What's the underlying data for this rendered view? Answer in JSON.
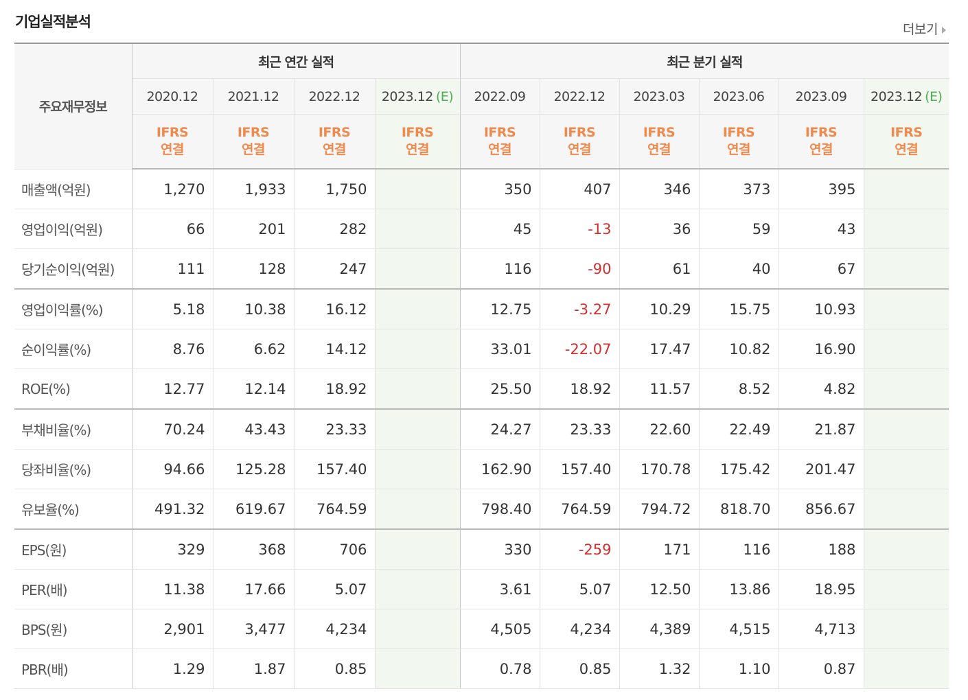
{
  "section": {
    "title": "기업실적분석",
    "more_label": "더보기"
  },
  "table": {
    "label_header": "주요재무정보",
    "annual_header": "최근 연간 실적",
    "quarter_header": "최근 분기 실적",
    "annual_years": [
      "2020.12",
      "2021.12",
      "2022.12",
      "2023.12"
    ],
    "quarter_years": [
      "2022.09",
      "2022.12",
      "2023.03",
      "2023.06",
      "2023.09",
      "2023.12"
    ],
    "estimate_mark": "(E)",
    "ifrs_line1": "IFRS",
    "ifrs_line2": "연결",
    "rows": [
      {
        "label": "매출액(억원)",
        "annual": [
          "1,270",
          "1,933",
          "1,750",
          ""
        ],
        "quarter": [
          "350",
          "407",
          "346",
          "373",
          "395",
          ""
        ]
      },
      {
        "label": "영업이익(억원)",
        "annual": [
          "66",
          "201",
          "282",
          ""
        ],
        "quarter": [
          "45",
          "-13",
          "36",
          "59",
          "43",
          ""
        ]
      },
      {
        "label": "당기순이익(억원)",
        "annual": [
          "111",
          "128",
          "247",
          ""
        ],
        "quarter": [
          "116",
          "-90",
          "61",
          "40",
          "67",
          ""
        ]
      },
      {
        "label": "영업이익률(%)",
        "annual": [
          "5.18",
          "10.38",
          "16.12",
          ""
        ],
        "quarter": [
          "12.75",
          "-3.27",
          "10.29",
          "15.75",
          "10.93",
          ""
        ]
      },
      {
        "label": "순이익률(%)",
        "annual": [
          "8.76",
          "6.62",
          "14.12",
          ""
        ],
        "quarter": [
          "33.01",
          "-22.07",
          "17.47",
          "10.82",
          "16.90",
          ""
        ]
      },
      {
        "label": "ROE(%)",
        "annual": [
          "12.77",
          "12.14",
          "18.92",
          ""
        ],
        "quarter": [
          "25.50",
          "18.92",
          "11.57",
          "8.52",
          "4.82",
          ""
        ]
      },
      {
        "label": "부채비율(%)",
        "annual": [
          "70.24",
          "43.43",
          "23.33",
          ""
        ],
        "quarter": [
          "24.27",
          "23.33",
          "22.60",
          "22.49",
          "21.87",
          ""
        ]
      },
      {
        "label": "당좌비율(%)",
        "annual": [
          "94.66",
          "125.28",
          "157.40",
          ""
        ],
        "quarter": [
          "162.90",
          "157.40",
          "170.78",
          "175.42",
          "201.47",
          ""
        ]
      },
      {
        "label": "유보율(%)",
        "annual": [
          "491.32",
          "619.67",
          "764.59",
          ""
        ],
        "quarter": [
          "798.40",
          "764.59",
          "794.72",
          "818.70",
          "856.67",
          ""
        ]
      },
      {
        "label": "EPS(원)",
        "annual": [
          "329",
          "368",
          "706",
          ""
        ],
        "quarter": [
          "330",
          "-259",
          "171",
          "116",
          "188",
          ""
        ]
      },
      {
        "label": "PER(배)",
        "annual": [
          "11.38",
          "17.66",
          "5.07",
          ""
        ],
        "quarter": [
          "3.61",
          "5.07",
          "12.50",
          "13.86",
          "18.95",
          ""
        ]
      },
      {
        "label": "BPS(원)",
        "annual": [
          "2,901",
          "3,477",
          "4,234",
          ""
        ],
        "quarter": [
          "4,505",
          "4,234",
          "4,389",
          "4,515",
          "4,713",
          ""
        ]
      },
      {
        "label": "PBR(배)",
        "annual": [
          "1.29",
          "1.87",
          "0.85",
          ""
        ],
        "quarter": [
          "0.78",
          "0.85",
          "1.32",
          "1.10",
          "0.87",
          ""
        ]
      }
    ]
  },
  "colors": {
    "negative": "#d32f2f",
    "ifrs": "#ef8a4f",
    "estimate": "#4caf50",
    "estimate_bg": "#f2f7f0"
  }
}
